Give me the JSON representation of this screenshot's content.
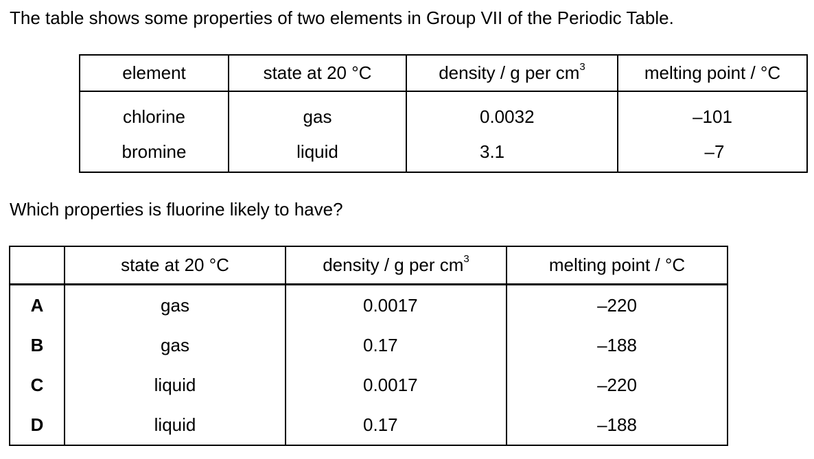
{
  "intro_text": "The table shows some properties of two elements in Group VII of the Periodic Table.",
  "properties_table": {
    "headers": {
      "element": "element",
      "state": "state at 20 °C",
      "density": "density / g per cm",
      "density_sup": "3",
      "melting": "melting point / °C"
    },
    "rows": [
      {
        "element": "chlorine",
        "state": "gas",
        "density": "0.0032",
        "melting": "–101"
      },
      {
        "element": "bromine",
        "state": "liquid",
        "density": "3.1",
        "melting": "–7"
      }
    ]
  },
  "question_text": "Which properties is fluorine likely to have?",
  "options_table": {
    "headers": {
      "state": "state at 20 °C",
      "density": "density / g per cm",
      "density_sup": "3",
      "melting": "melting point / °C"
    },
    "rows": [
      {
        "letter": "A",
        "state": "gas",
        "density": "0.0017",
        "melting": "–220"
      },
      {
        "letter": "B",
        "state": "gas",
        "density": "0.17",
        "melting": "–188"
      },
      {
        "letter": "C",
        "state": "liquid",
        "density": "0.0017",
        "melting": "–220"
      },
      {
        "letter": "D",
        "state": "liquid",
        "density": "0.17",
        "melting": "–188"
      }
    ]
  }
}
